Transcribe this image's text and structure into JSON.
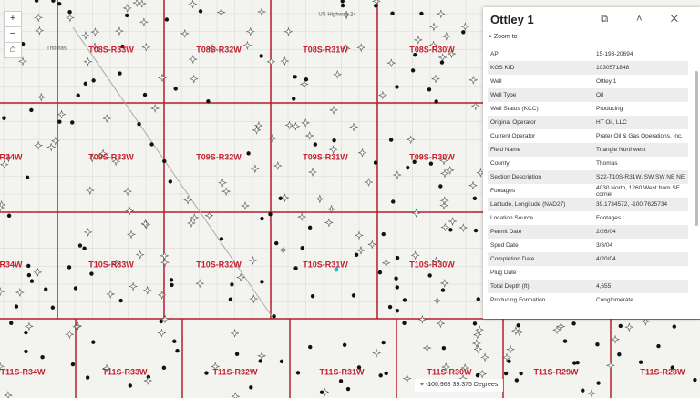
{
  "map": {
    "place_labels": [
      "Thomas",
      "US Highway 24"
    ],
    "township_labels": [
      "T08S-R33W",
      "T08S-R32W",
      "T08S-R31W",
      "T08S-R30W",
      "R34W",
      "T09S-R33W",
      "T09S-R32W",
      "T09S-R31W",
      "T09S-R30W",
      "R34W",
      "T10S-R33W",
      "T10S-R32W",
      "T10S-R31W",
      "T10S-R30W",
      "T11S-R34W",
      "T11S-R33W",
      "T11S-R32W",
      "T11S-R31W",
      "T11S-R30W",
      "T11S-R29W",
      "T11S-R28W"
    ],
    "coordinates": "-100.968 39.375 Degrees"
  },
  "popup": {
    "title": "Ottley 1",
    "zoom_to": "Zoom to",
    "rows": [
      [
        "API",
        "15-193-20694"
      ],
      [
        "KGS KID",
        "1030571848"
      ],
      [
        "Well",
        "Ottley 1"
      ],
      [
        "Well Type",
        "Oil"
      ],
      [
        "Well Status (KCC)",
        "Producing"
      ],
      [
        "Original Operator",
        "HT Oil, LLC"
      ],
      [
        "Current Operator",
        "Prater Oil & Gas Operations, Inc."
      ],
      [
        "Field Name",
        "Triangle Northwest"
      ],
      [
        "County",
        "Thomas"
      ],
      [
        "Section Description",
        "S22-T10S-R31W, SW SW NE NE"
      ],
      [
        "Footages",
        "4030 North, 1260 West from SE corner"
      ],
      [
        "Latitude, Longitude (NAD27)",
        "39.1734572, -100.7625734"
      ],
      [
        "Location Source",
        "Footages"
      ],
      [
        "Permit Date",
        "2/26/04"
      ],
      [
        "Spud Date",
        "3/8/04"
      ],
      [
        "Completion Date",
        "4/20/04"
      ],
      [
        "Plug Date",
        null
      ],
      [
        "Total Depth (ft)",
        "4,655"
      ],
      [
        "Producing Formation",
        "Conglomerate"
      ]
    ]
  }
}
